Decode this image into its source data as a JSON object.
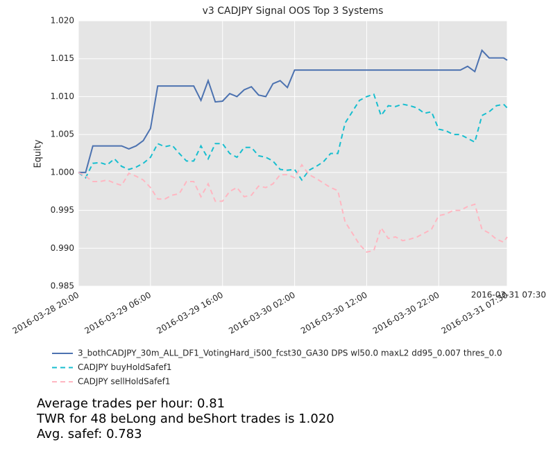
{
  "chart_data": {
    "type": "line",
    "title": "v3 CADJPY Signal OOS Top 3 Systems",
    "ylabel": "Equity",
    "x_offset_label": "2016-03-31 07:30",
    "x": [
      "2016-03-28 20:00",
      "2016-03-28 21:00",
      "2016-03-28 22:00",
      "2016-03-28 23:00",
      "2016-03-29 00:00",
      "2016-03-29 01:00",
      "2016-03-29 02:00",
      "2016-03-29 03:00",
      "2016-03-29 04:00",
      "2016-03-29 05:00",
      "2016-03-29 06:00",
      "2016-03-29 07:00",
      "2016-03-29 08:00",
      "2016-03-29 09:00",
      "2016-03-29 10:00",
      "2016-03-29 11:00",
      "2016-03-29 12:00",
      "2016-03-29 13:00",
      "2016-03-29 14:00",
      "2016-03-29 15:00",
      "2016-03-29 16:00",
      "2016-03-29 17:00",
      "2016-03-29 18:00",
      "2016-03-29 19:00",
      "2016-03-29 20:00",
      "2016-03-29 21:00",
      "2016-03-29 22:00",
      "2016-03-29 23:00",
      "2016-03-30 00:00",
      "2016-03-30 01:00",
      "2016-03-30 02:00",
      "2016-03-30 03:00",
      "2016-03-30 04:00",
      "2016-03-30 05:00",
      "2016-03-30 06:00",
      "2016-03-30 07:00",
      "2016-03-30 08:00",
      "2016-03-30 09:00",
      "2016-03-30 10:00",
      "2016-03-30 11:00",
      "2016-03-30 12:00",
      "2016-03-30 13:00",
      "2016-03-30 14:00",
      "2016-03-30 15:00",
      "2016-03-30 16:00",
      "2016-03-30 17:00",
      "2016-03-30 18:00",
      "2016-03-30 19:00",
      "2016-03-30 20:00",
      "2016-03-30 21:00",
      "2016-03-30 22:00",
      "2016-03-30 23:00",
      "2016-03-31 00:00",
      "2016-03-31 01:00",
      "2016-03-31 02:00",
      "2016-03-31 03:00",
      "2016-03-31 04:00",
      "2016-03-31 05:00",
      "2016-03-31 06:00",
      "2016-03-31 07:00",
      "2016-03-31 07:30"
    ],
    "series": [
      {
        "name": "3_bothCADJPY_30m_ALL_DF1_VotingHard_i500_fcst30_GA30 DPS wl50.0 maxL2 dd95_0.007 thres_0.0",
        "color": "#4c72b0",
        "dash": "solid",
        "values": [
          1.0,
          1.0,
          1.0035,
          1.0035,
          1.0035,
          1.0035,
          1.0035,
          1.0031,
          1.0035,
          1.0042,
          1.0058,
          1.0114,
          1.0114,
          1.0114,
          1.0114,
          1.0114,
          1.0114,
          1.0095,
          1.0121,
          1.0093,
          1.0094,
          1.0104,
          1.01,
          1.0109,
          1.0113,
          1.0102,
          1.01,
          1.0117,
          1.0121,
          1.0112,
          1.0135,
          1.0135,
          1.0135,
          1.0135,
          1.0135,
          1.0135,
          1.0135,
          1.0135,
          1.0135,
          1.0135,
          1.0135,
          1.0135,
          1.0135,
          1.0135,
          1.0135,
          1.0135,
          1.0135,
          1.0135,
          1.0135,
          1.0135,
          1.0135,
          1.0135,
          1.0135,
          1.0135,
          1.014,
          1.0133,
          1.0161,
          1.0151,
          1.0151,
          1.0151,
          1.0148
        ]
      },
      {
        "name": "CADJPY buyHoldSafef1",
        "color": "#17becf",
        "dash": "dashed",
        "values": [
          1.0,
          0.9993,
          1.0012,
          1.0013,
          1.001,
          1.0018,
          1.0008,
          1.0004,
          1.0007,
          1.0012,
          1.002,
          1.0038,
          1.0034,
          1.0036,
          1.0025,
          1.0015,
          1.0015,
          1.0035,
          1.0018,
          1.0038,
          1.0038,
          1.0025,
          1.002,
          1.0033,
          1.0033,
          1.0022,
          1.002,
          1.0015,
          1.0004,
          1.0003,
          1.0004,
          0.999,
          1.0003,
          1.0008,
          1.0014,
          1.0025,
          1.0025,
          1.0065,
          1.008,
          1.0095,
          1.01,
          1.0103,
          1.0075,
          1.0088,
          1.0087,
          1.009,
          1.0088,
          1.0085,
          1.0078,
          1.008,
          1.0057,
          1.0055,
          1.005,
          1.005,
          1.0045,
          1.004,
          1.0075,
          1.008,
          1.0088,
          1.009,
          1.0085
        ]
      },
      {
        "name": "CADJPY sellHoldSafef1",
        "color": "#ffb6c1",
        "dash": "dashed",
        "values": [
          1.0,
          0.9995,
          0.9988,
          0.9988,
          0.999,
          0.9986,
          0.9983,
          0.9999,
          0.9995,
          0.999,
          0.998,
          0.9965,
          0.9965,
          0.997,
          0.9972,
          0.9988,
          0.9988,
          0.9968,
          0.9985,
          0.9962,
          0.9962,
          0.9975,
          0.998,
          0.9968,
          0.997,
          0.9982,
          0.998,
          0.9985,
          0.9997,
          0.9997,
          0.9993,
          1.001,
          0.9997,
          0.9992,
          0.9986,
          0.998,
          0.9976,
          0.9935,
          0.992,
          0.9905,
          0.9895,
          0.9897,
          0.9927,
          0.9913,
          0.9915,
          0.991,
          0.9912,
          0.9915,
          0.992,
          0.9925,
          0.9943,
          0.9945,
          0.995,
          0.995,
          0.9955,
          0.9958,
          0.9925,
          0.992,
          0.9912,
          0.9908,
          0.9915
        ]
      }
    ],
    "xlim": [
      "2016-03-28 20:00",
      "2016-03-31 07:30"
    ],
    "xticks": [
      "2016-03-28 20:00",
      "2016-03-29 06:00",
      "2016-03-29 16:00",
      "2016-03-30 02:00",
      "2016-03-30 12:00",
      "2016-03-30 22:00",
      "2016-03-31 07:30"
    ],
    "ylim": [
      0.985,
      1.02
    ],
    "yticks": [
      0.985,
      {
        "value": 0.99,
        "label": "0.990"
      },
      0.995,
      {
        "value": 1.0,
        "label": "1.000"
      },
      1.005,
      {
        "value": 1.01,
        "label": "1.010"
      },
      1.015,
      {
        "value": 1.02,
        "label": "1.020"
      }
    ],
    "grid": true,
    "legend": "lower left",
    "notes": [
      "Average trades per hour: 0.81",
      "TWR for 48 beLong and beShort trades is 1.020",
      "Avg. safef: 0.783"
    ]
  }
}
